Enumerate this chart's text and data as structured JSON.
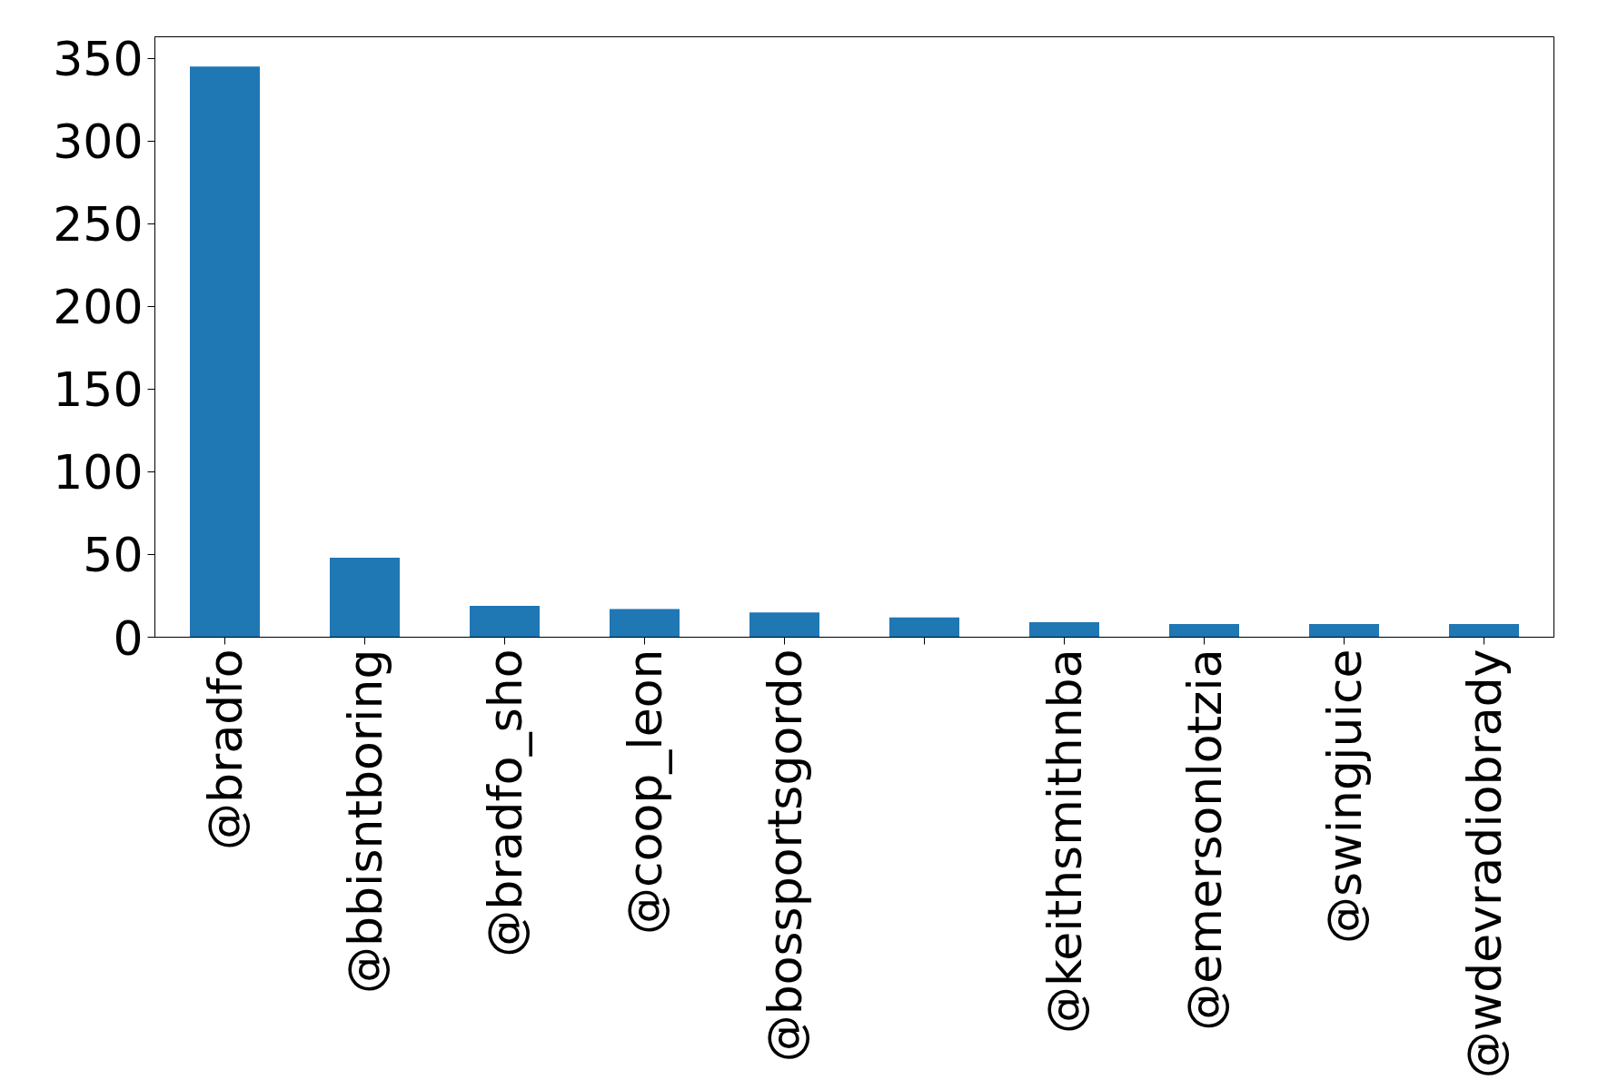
{
  "chart_data": {
    "type": "bar",
    "categories": [
      "@bradfo",
      "@bbisntboring",
      "@bradfo_sho",
      "@coop_leon",
      "@bossportsgordo",
      null,
      "@keithsmithnba",
      "@emersonlotzia",
      "@swingjuice",
      "@wdevradiobrady"
    ],
    "values": [
      345,
      48,
      19,
      17,
      15,
      12,
      9,
      8,
      8,
      8
    ],
    "color": "#1f77b4",
    "ylim": [
      0,
      363
    ],
    "yticks": [
      0,
      50,
      100,
      150,
      200,
      250,
      300,
      350
    ],
    "grid": false
  }
}
